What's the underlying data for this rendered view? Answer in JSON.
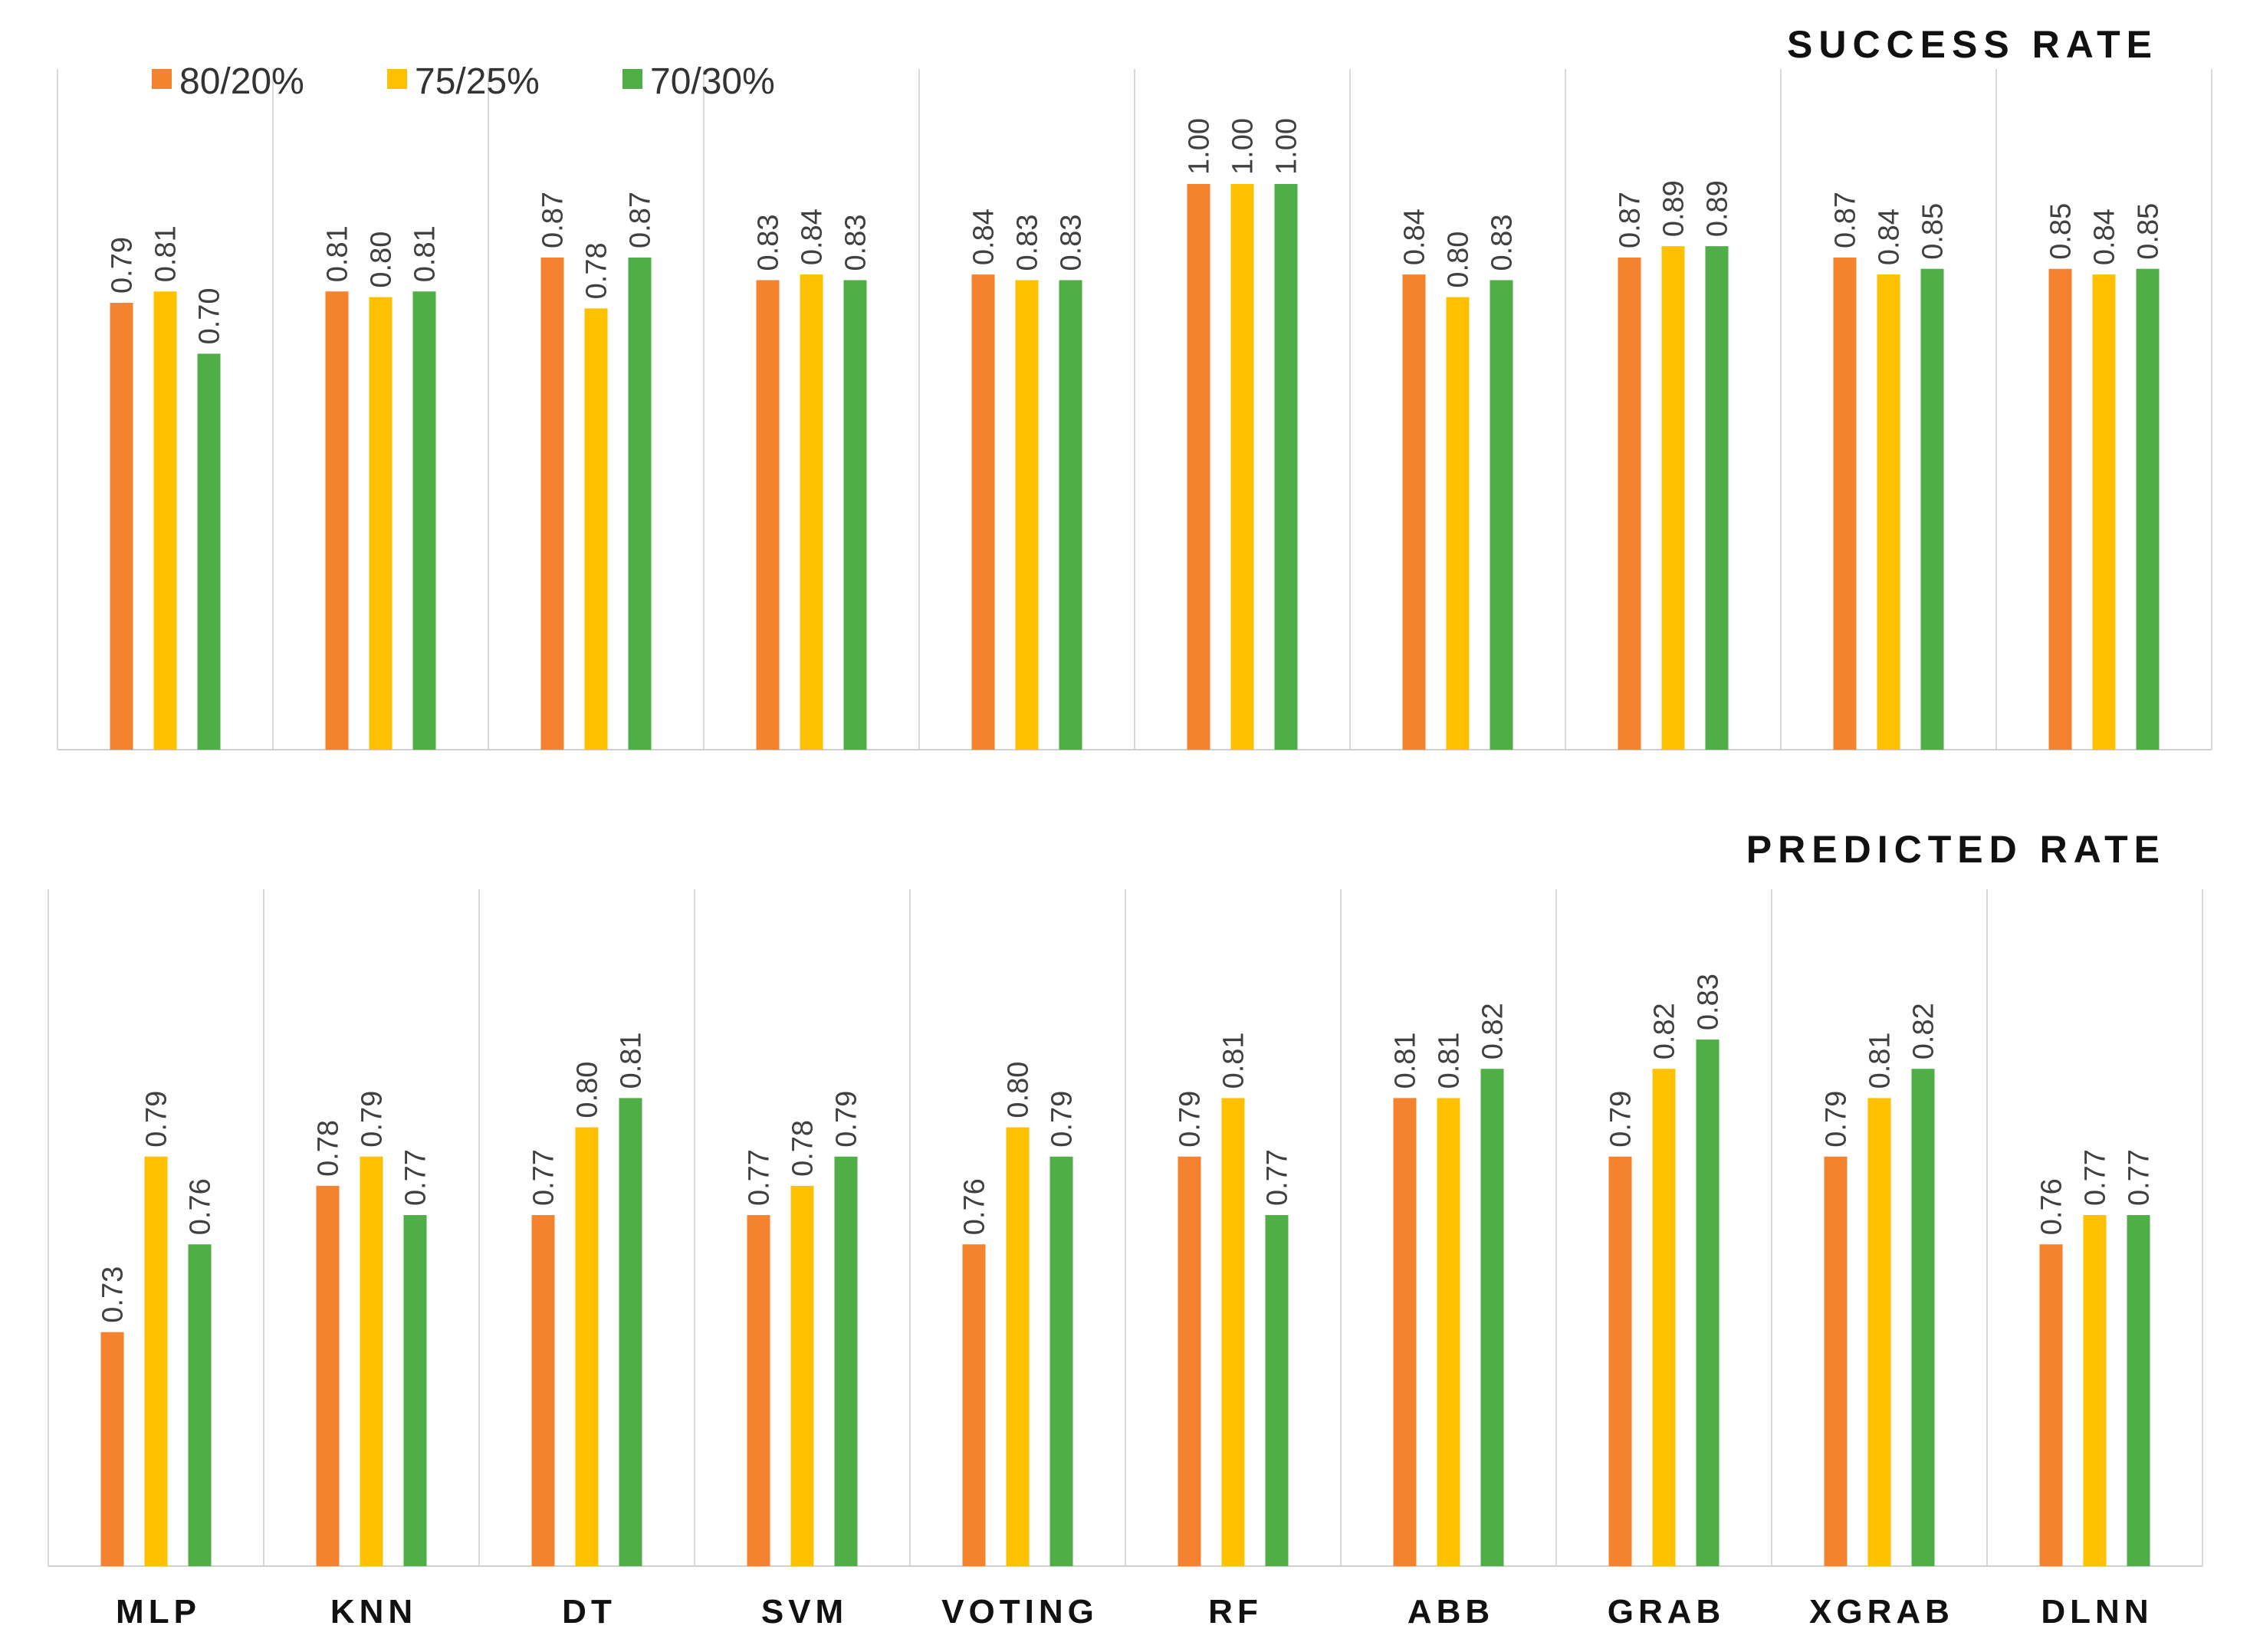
{
  "chart_data": {
    "type": "bar",
    "categories": [
      "MLP",
      "KNN",
      "DT",
      "SVM",
      "VOTING",
      "RF",
      "ABB",
      "GRAB",
      "XGRAB",
      "DLNN"
    ],
    "legend": [
      {
        "name": "80/20%",
        "color": "#F5822E"
      },
      {
        "name": "75/25%",
        "color": "#FFC000"
      },
      {
        "name": "70/30%",
        "color": "#4FAE45"
      }
    ],
    "legend_position": "top-left",
    "panels": [
      {
        "title": "SUCCESS RATE",
        "ylim": [
          0,
          1.0
        ],
        "series": [
          {
            "name": "80/20%",
            "values": [
              0.79,
              0.81,
              0.87,
              0.83,
              0.84,
              1.0,
              0.84,
              0.87,
              0.87,
              0.85
            ]
          },
          {
            "name": "75/25%",
            "values": [
              0.81,
              0.8,
              0.78,
              0.84,
              0.83,
              1.0,
              0.8,
              0.89,
              0.84,
              0.84
            ]
          },
          {
            "name": "70/30%",
            "values": [
              0.7,
              0.81,
              0.87,
              0.83,
              0.83,
              1.0,
              0.83,
              0.89,
              0.85,
              0.85
            ]
          }
        ],
        "labels": [
          [
            "0.79",
            "0.81",
            "0.87",
            "0.83",
            "0.84",
            "1.00",
            "0.84",
            "0.87",
            "0.87",
            "0.85"
          ],
          [
            "0.81",
            "0.80",
            "0.78",
            "0.84",
            "0.83",
            "1.00",
            "0.80",
            "0.89",
            "0.84",
            "0.84"
          ],
          [
            "0.70",
            "0.81",
            "0.87",
            "0.83",
            "0.83",
            "1.00",
            "0.83",
            "0.89",
            "0.85",
            "0.85"
          ]
        ]
      },
      {
        "title": "PREDICTED RATE",
        "ylim": [
          0.65,
          0.835
        ],
        "series": [
          {
            "name": "80/20%",
            "values": [
              0.73,
              0.78,
              0.77,
              0.77,
              0.76,
              0.79,
              0.81,
              0.79,
              0.79,
              0.76
            ]
          },
          {
            "name": "75/25%",
            "values": [
              0.79,
              0.79,
              0.8,
              0.78,
              0.8,
              0.81,
              0.81,
              0.82,
              0.81,
              0.77
            ]
          },
          {
            "name": "70/30%",
            "values": [
              0.76,
              0.77,
              0.81,
              0.79,
              0.79,
              0.77,
              0.82,
              0.83,
              0.82,
              0.77
            ]
          }
        ],
        "labels": [
          [
            "0.73",
            "0.78",
            "0.77",
            "0.77",
            "0.76",
            "0.79",
            "0.81",
            "0.79",
            "0.79",
            "0.76"
          ],
          [
            "0.79",
            "0.79",
            "0.80",
            "0.78",
            "0.80",
            "0.81",
            "0.81",
            "0.82",
            "0.81",
            "0.77"
          ],
          [
            "0.76",
            "0.77",
            "0.81",
            "0.79",
            "0.79",
            "0.77",
            "0.82",
            "0.83",
            "0.82",
            "0.77"
          ]
        ]
      }
    ]
  }
}
